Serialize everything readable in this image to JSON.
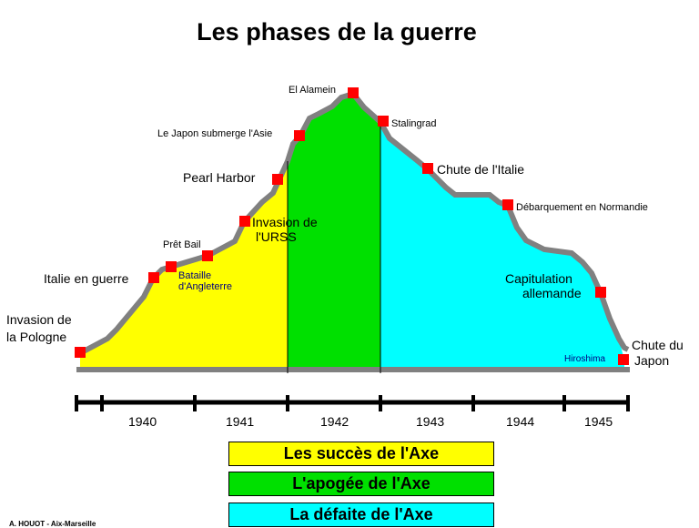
{
  "title": "Les phases de la guerre",
  "events": {
    "invasion_pologne_1": "Invasion de",
    "invasion_pologne_2": "la Pologne",
    "italie_en_guerre": "Italie en guerre",
    "pret_bail": "Prêt Bail",
    "bataille_1": "Bataille",
    "bataille_2": "d'Angleterre",
    "invasion_urss_1": "Invasion de",
    "invasion_urss_2": "l'URSS",
    "pearl_harbor": "Pearl Harbor",
    "japon_asie": "Le Japon submerge l'Asie",
    "el_alamein": "El Alamein",
    "stalingrad": "Stalingrad",
    "chute_italie": "Chute de l'Italie",
    "debarquement": "Débarquement en Normandie",
    "capitulation_1": "Capitulation",
    "capitulation_2": "allemande",
    "hiroshima": "Hiroshima",
    "chute_japon_1": "Chute du",
    "chute_japon_2": "Japon"
  },
  "years": [
    "1940",
    "1941",
    "1942",
    "1943",
    "1944",
    "1945"
  ],
  "legend": {
    "succes": "Les succès de l'Axe",
    "apogee": "L'apogée de l'Axe",
    "defaite": "La défaite de l'Axe"
  },
  "credit": "A. HOUOT - Aix-Marseille",
  "colors": {
    "succes": "#ffff00",
    "apogee": "#00e000",
    "defaite": "#00ffff",
    "marker": "#ff0000",
    "outline": "#808080"
  }
}
